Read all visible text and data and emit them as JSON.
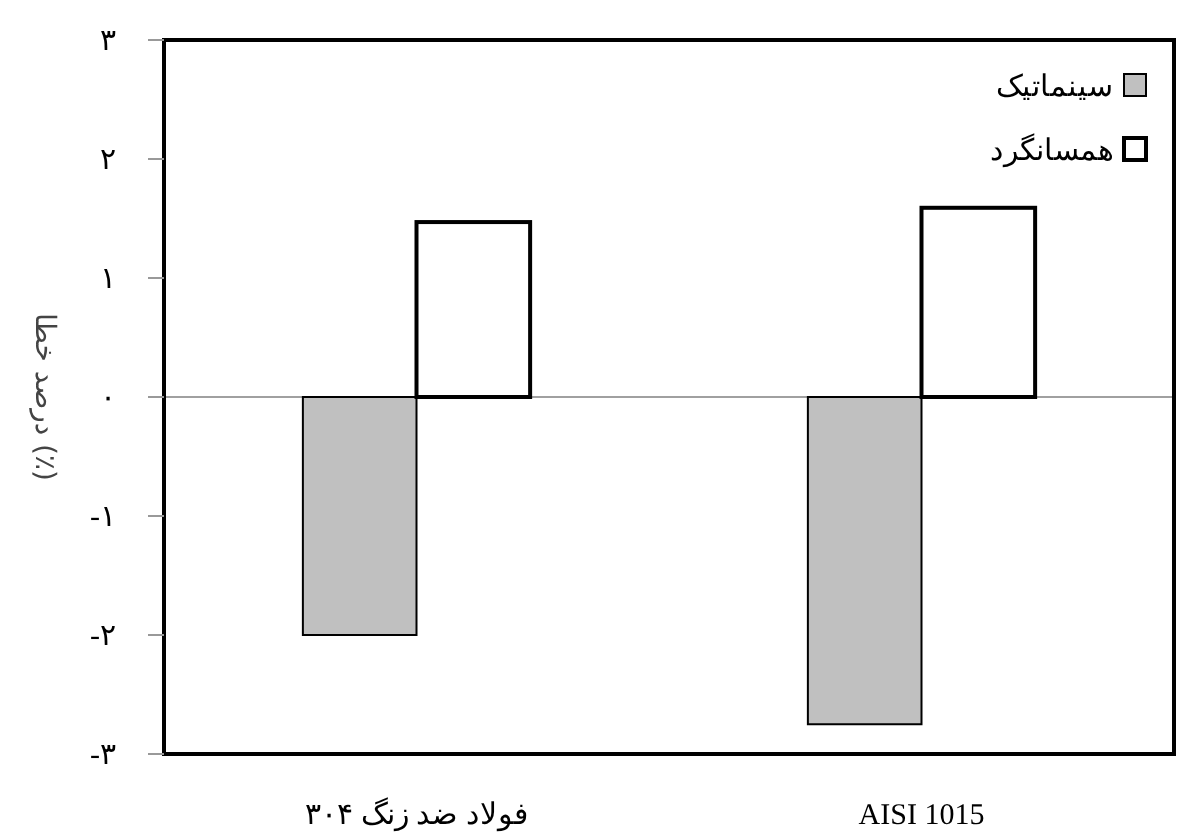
{
  "chart_data": {
    "type": "bar",
    "categories": [
      "فولاد ضد زنگ ۳۰۴",
      "AISI 1015"
    ],
    "ylabel": "درصد خطا (٪)",
    "series": [
      {
        "name": "سینماتیک",
        "color": "#c0c0c0",
        "values": [
          -2.0,
          -2.75
        ]
      },
      {
        "name": "همسانگرد",
        "color": "#ffffff",
        "values": [
          1.47,
          1.59
        ]
      }
    ],
    "ylim": [
      -3,
      3
    ],
    "yticks": [
      {
        "value": -3,
        "label": "-۳"
      },
      {
        "value": -2,
        "label": "-۲"
      },
      {
        "value": -1,
        "label": "-۱"
      },
      {
        "value": 0,
        "label": "۰"
      },
      {
        "value": 1,
        "label": "۱"
      },
      {
        "value": 2,
        "label": "۲"
      },
      {
        "value": 3,
        "label": "۳"
      }
    ],
    "ref_lines": [
      {
        "axis": "y",
        "value": 0,
        "color": "#a0a0a0"
      }
    ],
    "legend": "top right",
    "grid": false
  }
}
